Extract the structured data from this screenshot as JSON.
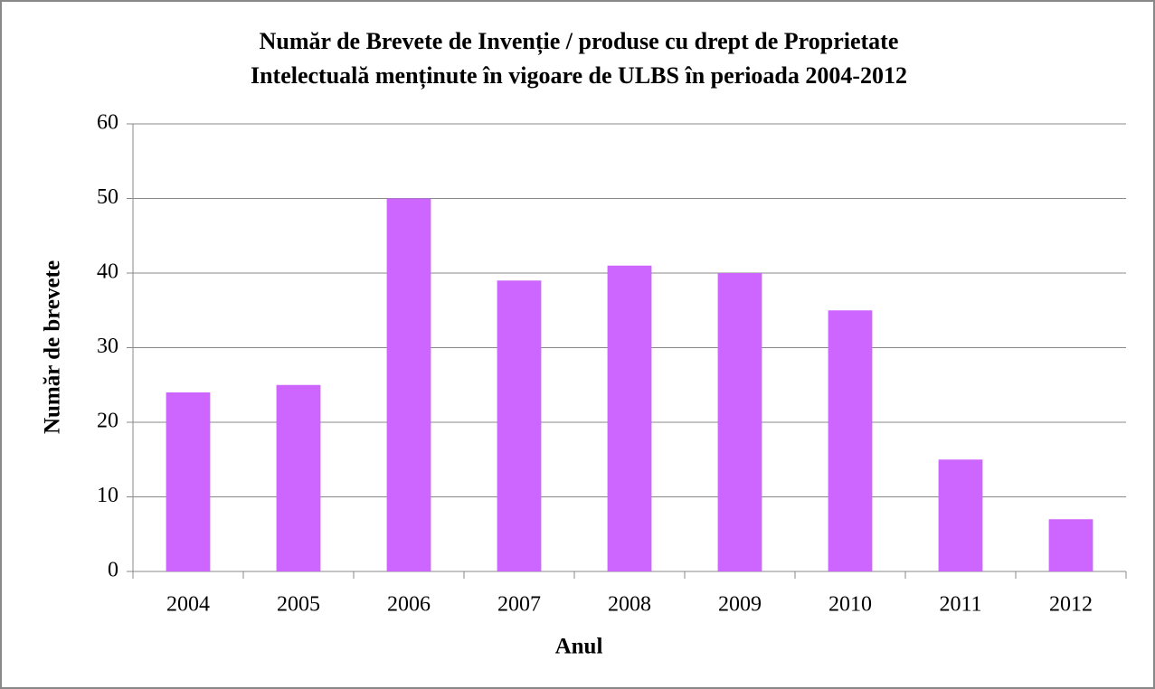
{
  "chart_data": {
    "type": "bar",
    "title": [
      "Număr de Brevete de Invenție / produse cu drept de Proprietate",
      "Intelectuală menținute în vigoare de ULBS în perioada 2004-2012"
    ],
    "xlabel": "Anul",
    "ylabel": "Număr de brevete",
    "categories": [
      "2004",
      "2005",
      "2006",
      "2007",
      "2008",
      "2009",
      "2010",
      "2011",
      "2012"
    ],
    "values": [
      24,
      25,
      50,
      39,
      41,
      40,
      35,
      15,
      7
    ],
    "color": "#cc66ff",
    "ylim": [
      0,
      60
    ],
    "yticks": [
      0,
      10,
      20,
      30,
      40,
      50,
      60
    ],
    "grid": true
  }
}
